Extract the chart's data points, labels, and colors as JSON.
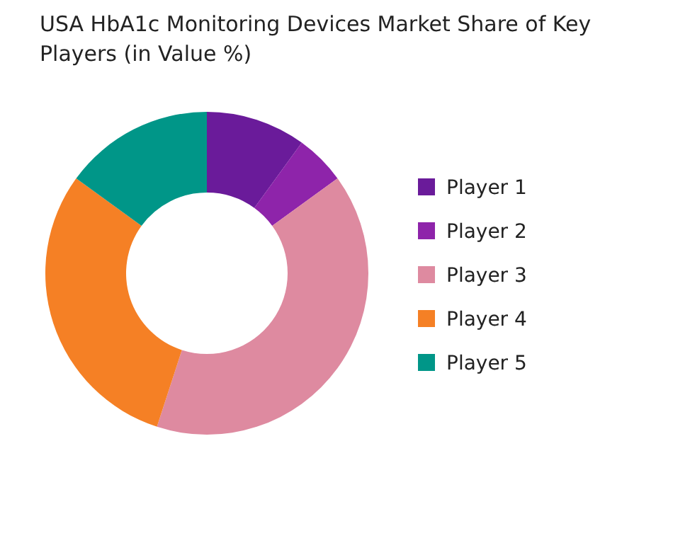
{
  "chart_data": {
    "type": "donut",
    "title": "USA HbA1c Monitoring Devices Market Share of Key Players (in Value %)",
    "categories": [
      "Player 1",
      "Player 2",
      "Player 3",
      "Player 4",
      "Player 5"
    ],
    "values": [
      10,
      5,
      40,
      30,
      15
    ],
    "colors": [
      "#6a1b9a",
      "#8e24aa",
      "#de8aa0",
      "#f58025",
      "#009688"
    ],
    "legend": "right"
  }
}
